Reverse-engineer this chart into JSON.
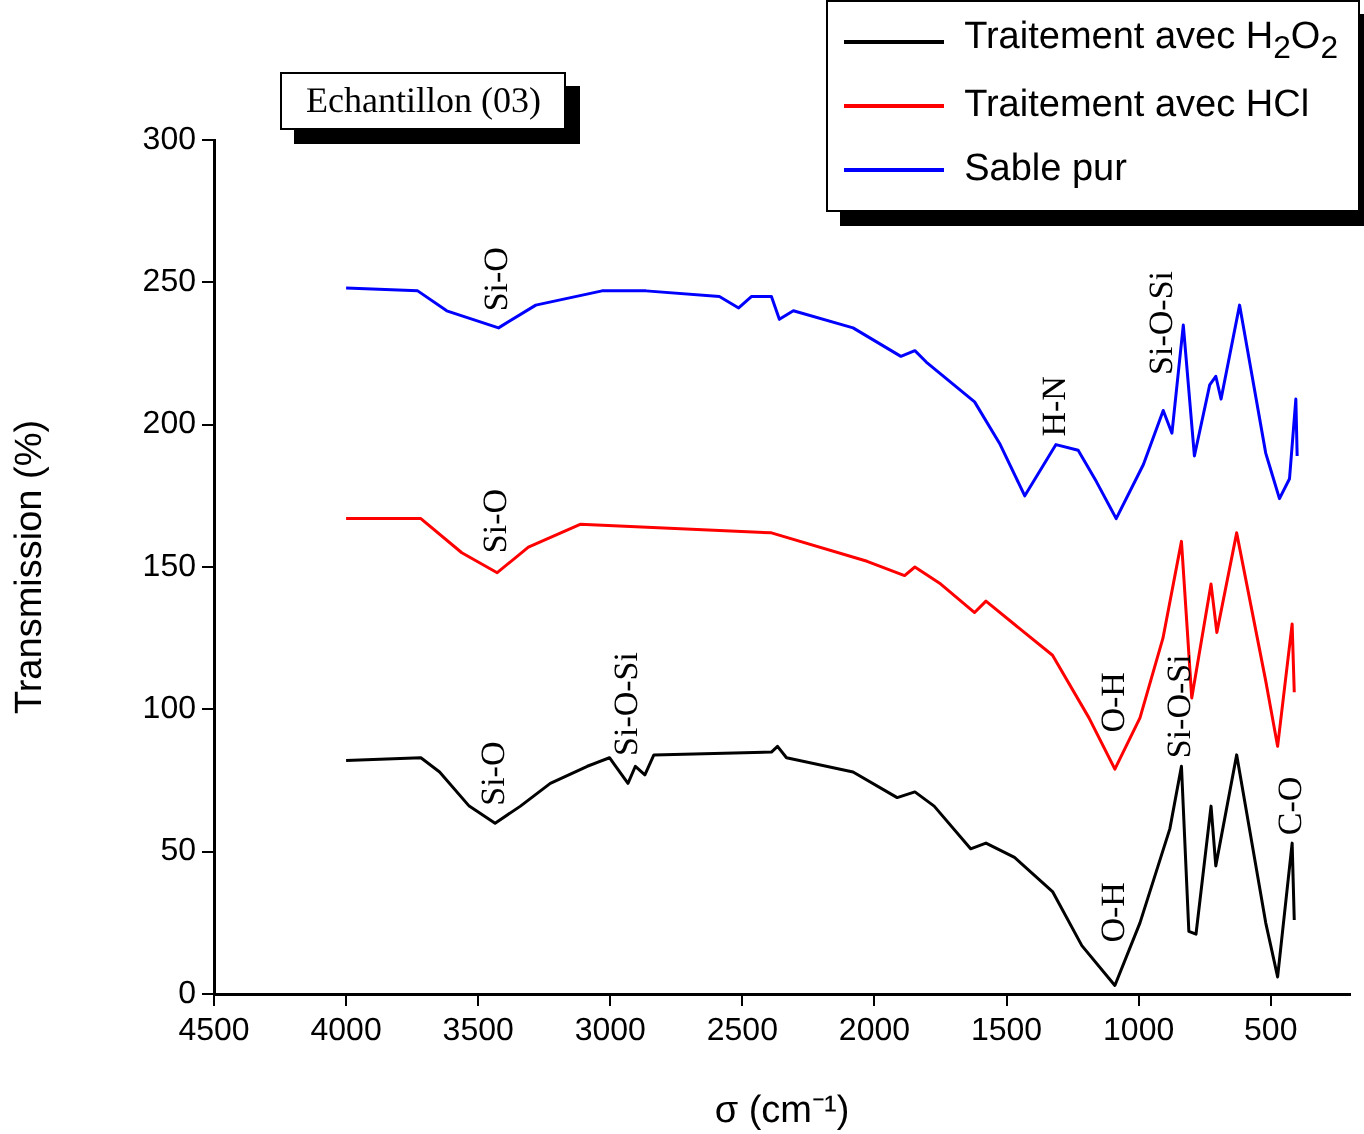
{
  "chart_data": {
    "type": "line",
    "title": "Echantillon (03)",
    "xlabel": "σ (cm⁻¹)",
    "ylabel": "Transmission (%)",
    "xlim": [
      4500,
      200
    ],
    "xticks": [
      4500,
      4000,
      3500,
      3000,
      2500,
      2000,
      1500,
      1000,
      500
    ],
    "ylim": [
      0,
      300
    ],
    "yticks": [
      0,
      50,
      100,
      150,
      200,
      250,
      300
    ],
    "grid": false,
    "legend": "top right",
    "marker": "none",
    "line_style": "solid",
    "series": [
      {
        "name": "Traitement avec H$_{2}$O$_{2}$",
        "color": "#000000",
        "x": [
          4000,
          3717,
          3646,
          3534,
          3436,
          3340,
          3227,
          3087,
          3003,
          2933,
          2905,
          2869,
          2835,
          2390,
          2367,
          2333,
          2081,
          1914,
          1847,
          1774,
          1636,
          1578,
          1470,
          1326,
          1215,
          1090,
          995,
          882,
          838,
          810,
          783,
          726,
          708,
          629,
          519,
          474,
          419,
          411
        ],
        "values": [
          82,
          83,
          78,
          66,
          60,
          66,
          74,
          80,
          83,
          74,
          80,
          77,
          84,
          85,
          87,
          83,
          78,
          69,
          71,
          66,
          51,
          53,
          48,
          36,
          17,
          3,
          25,
          58,
          80,
          22,
          21,
          66,
          45,
          84,
          25,
          6,
          53,
          26
        ]
      },
      {
        "name": "Traitement avec HCl",
        "color": "#ff0000",
        "x": [
          4000,
          3717,
          3562,
          3428,
          3310,
          3114,
          2390,
          2028,
          1886,
          1847,
          1749,
          1621,
          1578,
          1326,
          1188,
          1090,
          995,
          908,
          838,
          799,
          726,
          704,
          629,
          519,
          474,
          419,
          411
        ],
        "values": [
          167,
          167,
          155,
          148,
          157,
          165,
          162,
          152,
          147,
          150,
          144,
          134,
          138,
          119,
          97,
          79,
          97,
          125,
          159,
          104,
          144,
          127,
          162,
          110,
          87,
          130,
          106
        ]
      },
      {
        "name": "Sable pur",
        "color": "#0000ff",
        "x": [
          4000,
          3729,
          3619,
          3423,
          3282,
          3031,
          2865,
          2587,
          2514,
          2466,
          2390,
          2360,
          2307,
          2081,
          1900,
          1847,
          1804,
          1621,
          1524,
          1431,
          1313,
          1229,
          1160,
          1085,
          982,
          907,
          874,
          831,
          789,
          731,
          708,
          688,
          618,
          519,
          467,
          429,
          405,
          400
        ],
        "values": [
          248,
          247,
          240,
          234,
          242,
          247,
          247,
          245,
          241,
          245,
          245,
          237,
          240,
          234,
          224,
          226,
          222,
          208,
          193,
          175,
          193,
          191,
          180,
          167,
          186,
          205,
          197,
          235,
          189,
          214,
          217,
          209,
          242,
          190,
          174,
          181,
          209,
          189
        ]
      }
    ],
    "annotations": [
      {
        "text": "Si-O",
        "x": 3423,
        "y": 234
      },
      {
        "text": "H-N",
        "x": 1313,
        "y": 193
      },
      {
        "text": "Si-O-Si",
        "x": 907,
        "y": 205
      },
      {
        "text": "Si-O",
        "x": 3428,
        "y": 148
      },
      {
        "text": "O-H",
        "x": 1090,
        "y": 79
      },
      {
        "text": "Si-O",
        "x": 3436,
        "y": 60
      },
      {
        "text": "Si-O-Si",
        "x": 2933,
        "y": 74
      },
      {
        "text": "O-H",
        "x": 1090,
        "y": 3
      },
      {
        "text": "Si-O-Si",
        "x": 838,
        "y": 80
      },
      {
        "text": "C-O",
        "x": 419,
        "y": 53
      }
    ]
  }
}
